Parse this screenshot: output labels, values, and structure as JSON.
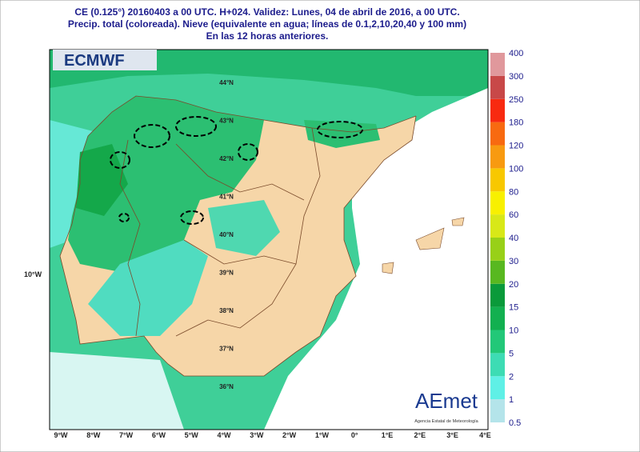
{
  "header": {
    "lines": [
      "CE (0.125°) 20160403 a 00 UTC.  H+024. Validez: Lunes, 04 de abril de 2016,  a  00 UTC.",
      "Precip. total (coloreada). Nieve (equivalente en agua; líneas de 0.1,2,10,20,40 y 100 mm)",
      "En las 12 horas anteriores."
    ]
  },
  "logos": {
    "left": "ECMWF",
    "right": "AEmet",
    "right_sub": "Agencia Estatal de Meteorología"
  },
  "colorbar": {
    "labels": [
      "0.5",
      "1",
      "2",
      "5",
      "10",
      "15",
      "20",
      "30",
      "40",
      "60",
      "80",
      "100",
      "120",
      "180",
      "250",
      "300",
      "400"
    ],
    "colors": [
      "#b4e4ea",
      "#5ff0e6",
      "#3ddcb4",
      "#22c878",
      "#12b050",
      "#0a9a3a",
      "#58b820",
      "#98d018",
      "#d8e818",
      "#f8f000",
      "#f8c800",
      "#f89a10",
      "#f86a10",
      "#f82a10",
      "#c84848",
      "#e0989c"
    ]
  },
  "axes": {
    "longitudes": [
      "9°W",
      "8°W",
      "7°W",
      "6°W",
      "5°W",
      "4°W",
      "3°W",
      "2°W",
      "1°W",
      "0°",
      "1°E",
      "2°E",
      "3°E",
      "4°E"
    ],
    "latitudes": [
      "44°N",
      "43°N",
      "42°N",
      "41°N",
      "40°N",
      "39°N",
      "38°N",
      "37°N",
      "36°N"
    ],
    "left_label": "10°W"
  }
}
